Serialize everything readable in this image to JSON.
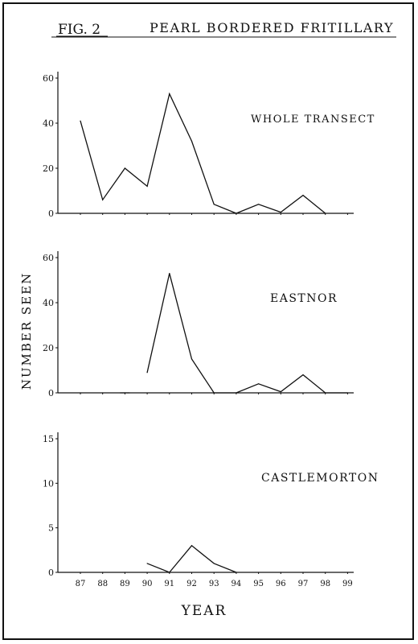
{
  "figure": {
    "fig_label": "FIG. 2",
    "title": "PEARL BORDERED FRITILLARY",
    "ylabel": "NUMBER SEEN",
    "xlabel": "YEAR",
    "x_tick_labels": [
      "87",
      "88",
      "89",
      "90",
      "91",
      "92",
      "93",
      "94",
      "95",
      "96",
      "97",
      "98",
      "99"
    ]
  },
  "chart_data": [
    {
      "type": "line",
      "label": "WHOLE TRANSECT",
      "x": [
        "87",
        "88",
        "89",
        "90",
        "91",
        "92",
        "93",
        "94",
        "95",
        "96",
        "97",
        "98",
        "99"
      ],
      "values": [
        41,
        6,
        20,
        12,
        53,
        32,
        4,
        0,
        4,
        0.5,
        8,
        0,
        null
      ],
      "ylim": [
        0,
        60
      ],
      "yticks": [
        0,
        20,
        40,
        60
      ],
      "ytick_labels": [
        "0",
        "20",
        "40",
        "60"
      ],
      "grid": false
    },
    {
      "type": "line",
      "label": "EASTNOR",
      "x": [
        "87",
        "88",
        "89",
        "90",
        "91",
        "92",
        "93",
        "94",
        "95",
        "96",
        "97",
        "98",
        "99"
      ],
      "values": [
        0,
        0,
        0,
        9,
        53,
        15,
        0,
        0,
        4,
        0.5,
        8,
        0,
        0
      ],
      "segments": [
        [
          2,
          2
        ],
        [
          3,
          12
        ]
      ],
      "ylim": [
        0,
        60
      ],
      "yticks": [
        0,
        20,
        40,
        60
      ],
      "ytick_labels": [
        "0",
        "20",
        "40",
        "60"
      ],
      "grid": false
    },
    {
      "type": "line",
      "label": "CASTLEMORTON",
      "x": [
        "87",
        "88",
        "89",
        "90",
        "91",
        "92",
        "93",
        "94",
        "95",
        "96",
        "97",
        "98",
        "99"
      ],
      "values": [
        0,
        0,
        0,
        1,
        0,
        3,
        1,
        0,
        0,
        0,
        0,
        0,
        0
      ],
      "segments": [
        [
          3,
          7
        ]
      ],
      "ylim": [
        0,
        15
      ],
      "yticks": [
        0,
        5,
        10,
        15
      ],
      "ytick_labels": [
        "0",
        "5",
        "10",
        "15"
      ],
      "grid": false
    }
  ]
}
